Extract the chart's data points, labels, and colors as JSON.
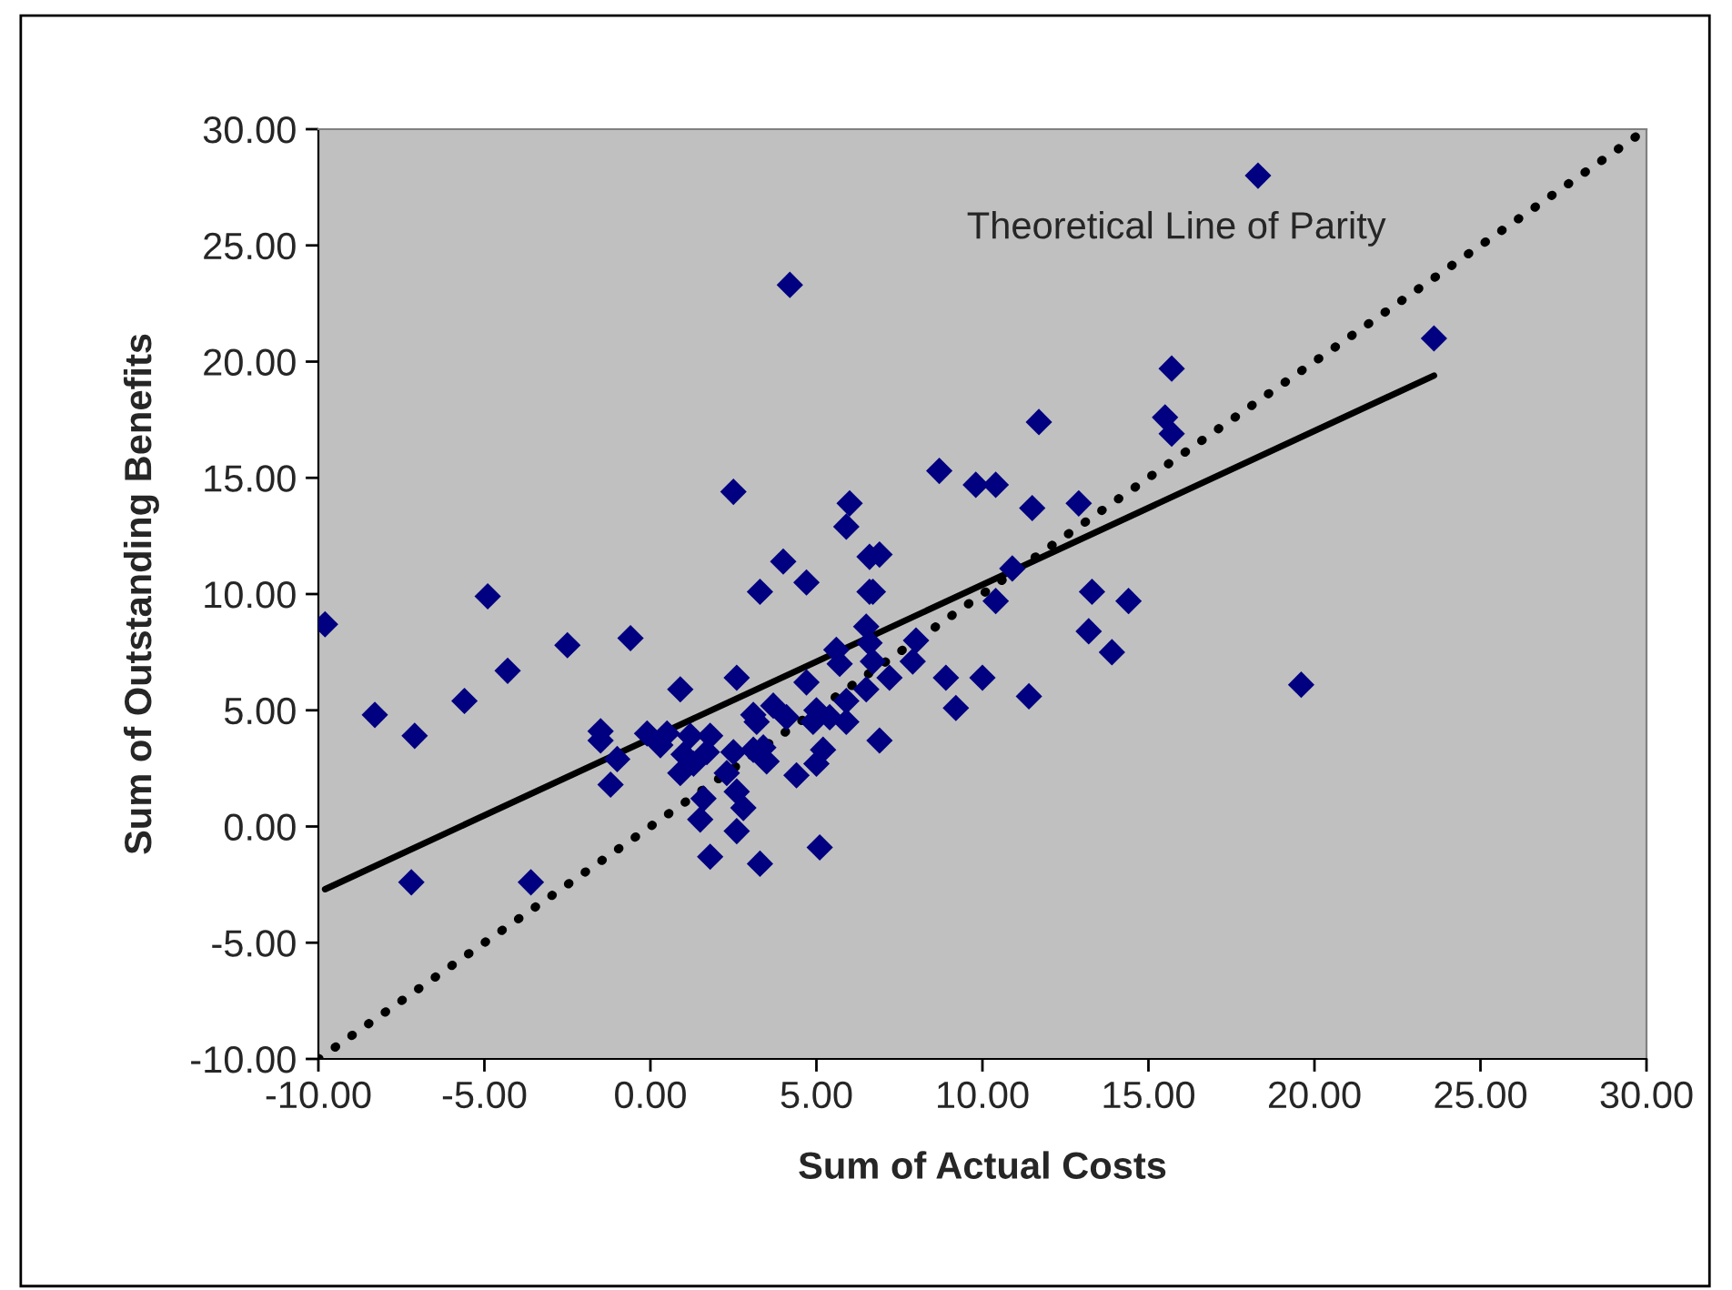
{
  "chart_data": {
    "type": "scatter",
    "xlabel": "Sum of Actual Costs",
    "ylabel": "Sum of Outstanding Benefits",
    "annotations": [
      "Theoretical Line of Parity"
    ],
    "grid": false,
    "legend": false,
    "xlim": [
      -10,
      30
    ],
    "ylim": [
      -10,
      30
    ],
    "xticks": [
      {
        "value": -10,
        "label": "-10.00"
      },
      {
        "value": -5,
        "label": "-5.00"
      },
      {
        "value": 0,
        "label": "0.00"
      },
      {
        "value": 5,
        "label": "5.00"
      },
      {
        "value": 10,
        "label": "10.00"
      },
      {
        "value": 15,
        "label": "15.00"
      },
      {
        "value": 20,
        "label": "20.00"
      },
      {
        "value": 25,
        "label": "25.00"
      },
      {
        "value": 30,
        "label": "30.00"
      }
    ],
    "yticks": [
      {
        "value": -10,
        "label": "-10.00"
      },
      {
        "value": -5,
        "label": "-5.00"
      },
      {
        "value": 0,
        "label": "0.00"
      },
      {
        "value": 5,
        "label": "5.00"
      },
      {
        "value": 10,
        "label": "10.00"
      },
      {
        "value": 15,
        "label": "15.00"
      },
      {
        "value": 20,
        "label": "20.00"
      },
      {
        "value": 25,
        "label": "25.00"
      },
      {
        "value": 30,
        "label": "30.00"
      }
    ],
    "series": [
      {
        "marker": "diamond",
        "color": "#000080",
        "x": [
          -9.8,
          -8.3,
          -7.1,
          -7.2,
          -5.6,
          -4.9,
          -4.3,
          -3.6,
          -2.5,
          -0.6,
          0.9,
          -1.5,
          -1.5,
          -1.0,
          -1.2,
          -0.1,
          0.5,
          0.3,
          1.2,
          1.8,
          1.0,
          1.3,
          0.9,
          1.7,
          2.5,
          3.1,
          3.5,
          2.3,
          2.6,
          2.8,
          1.6,
          1.5,
          2.6,
          1.8,
          3.3,
          5.1,
          2.6,
          2.5,
          4.2,
          4.0,
          3.3,
          4.7,
          3.1,
          3.2,
          3.7,
          4.1,
          3.4,
          4.4,
          4.7,
          4.9,
          5.0,
          5.2,
          5.0,
          5.4,
          5.9,
          5.7,
          5.6,
          5.9,
          6.5,
          6.9,
          6.5,
          6.6,
          6.7,
          7.2,
          7.9,
          8.0,
          5.9,
          6.0,
          6.6,
          6.9,
          6.6,
          6.7,
          8.7,
          9.8,
          10.4,
          10.4,
          10.9,
          8.9,
          10.0,
          9.2,
          18.3,
          23.6,
          15.7,
          11.7,
          15.5,
          15.7,
          12.9,
          11.5,
          13.3,
          14.4,
          13.2,
          13.9,
          19.6,
          11.4
        ],
        "values": [
          8.7,
          4.8,
          3.9,
          -2.4,
          5.4,
          9.9,
          6.7,
          -2.4,
          7.8,
          8.1,
          5.9,
          4.1,
          3.7,
          2.9,
          1.8,
          4.0,
          4.0,
          3.5,
          3.9,
          3.9,
          3.1,
          2.7,
          2.3,
          3.2,
          3.2,
          3.3,
          2.8,
          2.3,
          1.5,
          0.8,
          1.2,
          0.3,
          -0.2,
          -1.3,
          -1.6,
          -0.9,
          6.4,
          14.4,
          23.3,
          11.4,
          10.1,
          10.5,
          4.8,
          4.5,
          5.2,
          4.7,
          3.4,
          2.2,
          6.2,
          4.5,
          2.7,
          3.3,
          5.0,
          4.7,
          4.5,
          7.0,
          7.6,
          5.4,
          5.9,
          3.7,
          8.6,
          7.9,
          7.1,
          6.4,
          7.1,
          8.0,
          12.9,
          13.9,
          11.6,
          11.7,
          10.1,
          10.1,
          15.3,
          14.7,
          14.7,
          9.7,
          11.1,
          6.4,
          6.4,
          5.1,
          28.0,
          21.0,
          19.7,
          17.4,
          17.6,
          16.9,
          13.9,
          13.7,
          10.1,
          9.7,
          8.4,
          7.5,
          6.1,
          5.6
        ]
      },
      {
        "type": "line",
        "color": "#000000",
        "line_style": "solid",
        "marker": "none",
        "x": [
          -9.8,
          23.6
        ],
        "values": [
          -2.7,
          19.4
        ]
      },
      {
        "type": "line",
        "color": "#000000",
        "line_style": "dotted",
        "marker": "none",
        "x": [
          -10,
          30
        ],
        "values": [
          -10,
          30
        ]
      }
    ]
  }
}
